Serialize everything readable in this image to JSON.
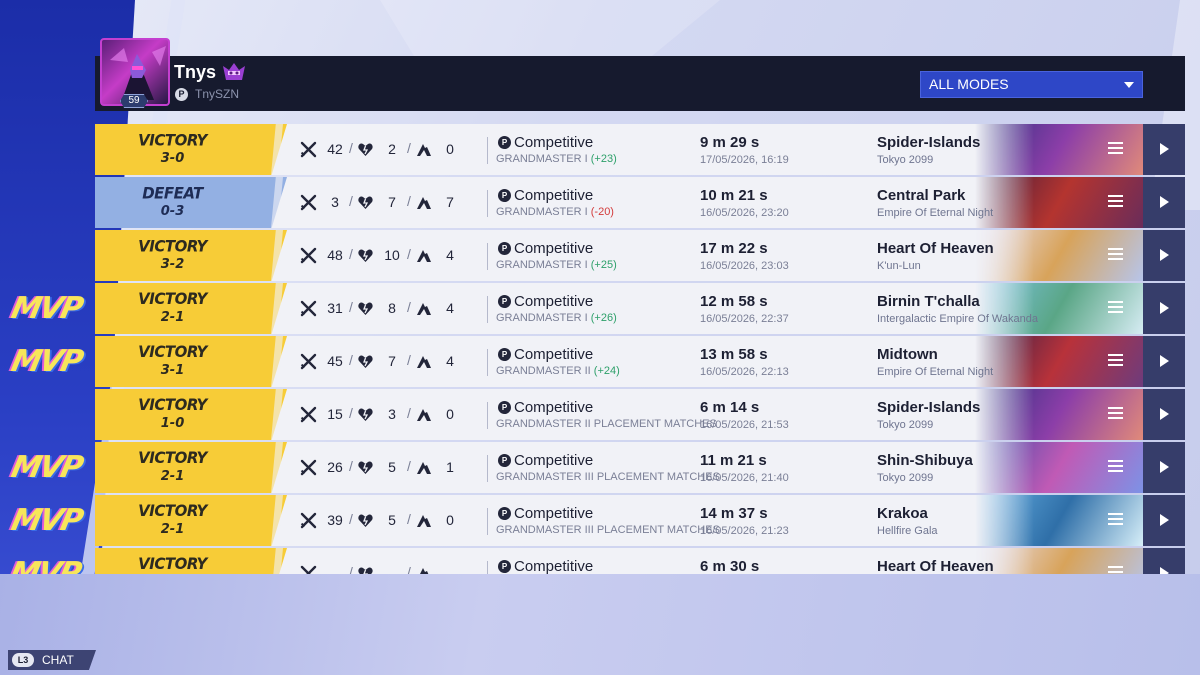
{
  "player": {
    "name": "Tnys",
    "handle": "TnySZN",
    "level": "59"
  },
  "filter": {
    "selected": "ALL MODES"
  },
  "matches": [
    {
      "result": "VICTORY",
      "score": "3-0",
      "type": "win",
      "mvp": false,
      "kills": "42",
      "deaths": "2",
      "assists": "0",
      "mode": "Competitive",
      "rank": "GRANDMASTER I",
      "delta": "(+23)",
      "delta_dir": "up",
      "duration": "9 m 29 s",
      "datetime": "17/05/2026, 16:19",
      "map": "Spider-Islands",
      "region": "Tokyo 2099",
      "map_colors": [
        "#2a2f7e",
        "#8c3ea8",
        "#e08a7a"
      ]
    },
    {
      "result": "DEFEAT",
      "score": "0-3",
      "type": "loss",
      "mvp": false,
      "kills": "3",
      "deaths": "7",
      "assists": "7",
      "mode": "Competitive",
      "rank": "GRANDMASTER I",
      "delta": "(-20)",
      "delta_dir": "down",
      "duration": "10 m 21 s",
      "datetime": "16/05/2026, 23:20",
      "map": "Central Park",
      "region": "Empire Of Eternal Night",
      "map_colors": [
        "#3a1a3e",
        "#b4342f",
        "#6a2c5a"
      ]
    },
    {
      "result": "VICTORY",
      "score": "3-2",
      "type": "win",
      "mvp": false,
      "kills": "48",
      "deaths": "10",
      "assists": "4",
      "mode": "Competitive",
      "rank": "GRANDMASTER I",
      "delta": "(+25)",
      "delta_dir": "up",
      "duration": "17 m 22 s",
      "datetime": "16/05/2026, 23:03",
      "map": "Heart Of Heaven",
      "region": "K'un-Lun",
      "map_colors": [
        "#e9e2f4",
        "#d8a35a",
        "#b7c5ea"
      ]
    },
    {
      "result": "VICTORY",
      "score": "2-1",
      "type": "win",
      "mvp": true,
      "kills": "31",
      "deaths": "8",
      "assists": "4",
      "mode": "Competitive",
      "rank": "GRANDMASTER I",
      "delta": "(+26)",
      "delta_dir": "up",
      "duration": "12 m 58 s",
      "datetime": "16/05/2026, 22:37",
      "map": "Birnin T'challa",
      "region": "Intergalactic Empire Of Wakanda",
      "map_colors": [
        "#7fc6e8",
        "#5aa686",
        "#d6ecf3"
      ]
    },
    {
      "result": "VICTORY",
      "score": "3-1",
      "type": "win",
      "mvp": true,
      "kills": "45",
      "deaths": "7",
      "assists": "4",
      "mode": "Competitive",
      "rank": "GRANDMASTER II",
      "delta": "(+24)",
      "delta_dir": "up",
      "duration": "13 m 58 s",
      "datetime": "16/05/2026, 22:13",
      "map": "Midtown",
      "region": "Empire Of Eternal Night",
      "map_colors": [
        "#2b1e4a",
        "#b8323a",
        "#6e3b7c"
      ]
    },
    {
      "result": "VICTORY",
      "score": "1-0",
      "type": "win",
      "mvp": false,
      "kills": "15",
      "deaths": "3",
      "assists": "0",
      "mode": "Competitive",
      "rank": "GRANDMASTER II PLACEMENT MATCHES",
      "delta": "",
      "delta_dir": "none",
      "duration": "6 m 14 s",
      "datetime": "16/05/2026, 21:53",
      "map": "Spider-Islands",
      "region": "Tokyo 2099",
      "map_colors": [
        "#2a2f7e",
        "#8c3ea8",
        "#e08a7a"
      ]
    },
    {
      "result": "VICTORY",
      "score": "2-1",
      "type": "win",
      "mvp": true,
      "kills": "26",
      "deaths": "5",
      "assists": "1",
      "mode": "Competitive",
      "rank": "GRANDMASTER III PLACEMENT MATCHES",
      "delta": "",
      "delta_dir": "none",
      "duration": "11 m 21 s",
      "datetime": "16/05/2026, 21:40",
      "map": "Shin-Shibuya",
      "region": "Tokyo 2099",
      "map_colors": [
        "#3c4aa8",
        "#c05ab5",
        "#7d92e6"
      ]
    },
    {
      "result": "VICTORY",
      "score": "2-1",
      "type": "win",
      "mvp": true,
      "kills": "39",
      "deaths": "5",
      "assists": "0",
      "mode": "Competitive",
      "rank": "GRANDMASTER III PLACEMENT MATCHES",
      "delta": "",
      "delta_dir": "none",
      "duration": "14 m 37 s",
      "datetime": "16/05/2026, 21:23",
      "map": "Krakoa",
      "region": "Hellfire Gala",
      "map_colors": [
        "#6ab4e6",
        "#2f6fa8",
        "#d6eef8"
      ]
    },
    {
      "result": "VICTORY",
      "score": "",
      "type": "win",
      "mvp": true,
      "kills": "",
      "deaths": "",
      "assists": "",
      "mode": "Competitive",
      "rank": "",
      "delta": "",
      "delta_dir": "none",
      "duration": "6 m 30 s",
      "datetime": "",
      "map": "Heart Of Heaven",
      "region": "",
      "map_colors": [
        "#e9e2f4",
        "#d8a35a",
        "#b7c5ea"
      ]
    }
  ],
  "mvp_label": "MVP",
  "chat": {
    "key": "L3",
    "label": "CHAT"
  }
}
